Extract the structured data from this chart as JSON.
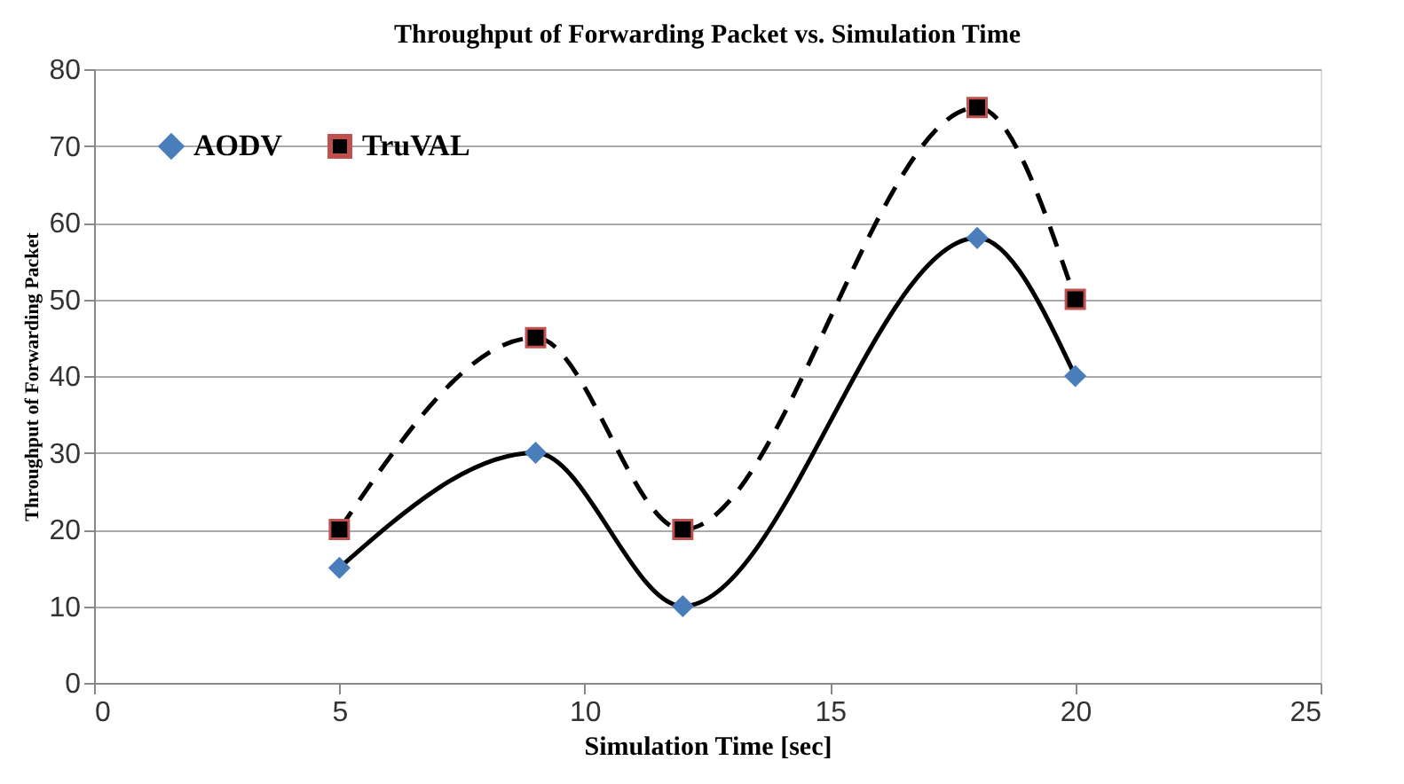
{
  "chart_data": {
    "type": "line",
    "title": "Throughput of Forwarding Packet vs. Simulation Time",
    "xlabel": "Simulation Time [sec]",
    "ylabel": "Throughput of Forwarding Packet",
    "x": [
      5,
      9,
      12,
      18,
      20
    ],
    "series": [
      {
        "name": "AODV",
        "color": "#000000",
        "marker": "diamond",
        "line_style": "solid",
        "values": [
          15,
          30,
          10,
          58,
          40
        ]
      },
      {
        "name": "TruVAL",
        "color": "#000000",
        "marker": "square",
        "line_style": "dashed",
        "values": [
          20,
          45,
          20,
          75,
          50
        ]
      }
    ],
    "xlim": [
      0,
      25
    ],
    "xticks": [
      0,
      5,
      10,
      15,
      20,
      25
    ],
    "ylim": [
      0,
      80
    ],
    "yticks": [
      0,
      10,
      20,
      30,
      40,
      50,
      60,
      70,
      80
    ],
    "grid": "y",
    "legend": "top left"
  }
}
